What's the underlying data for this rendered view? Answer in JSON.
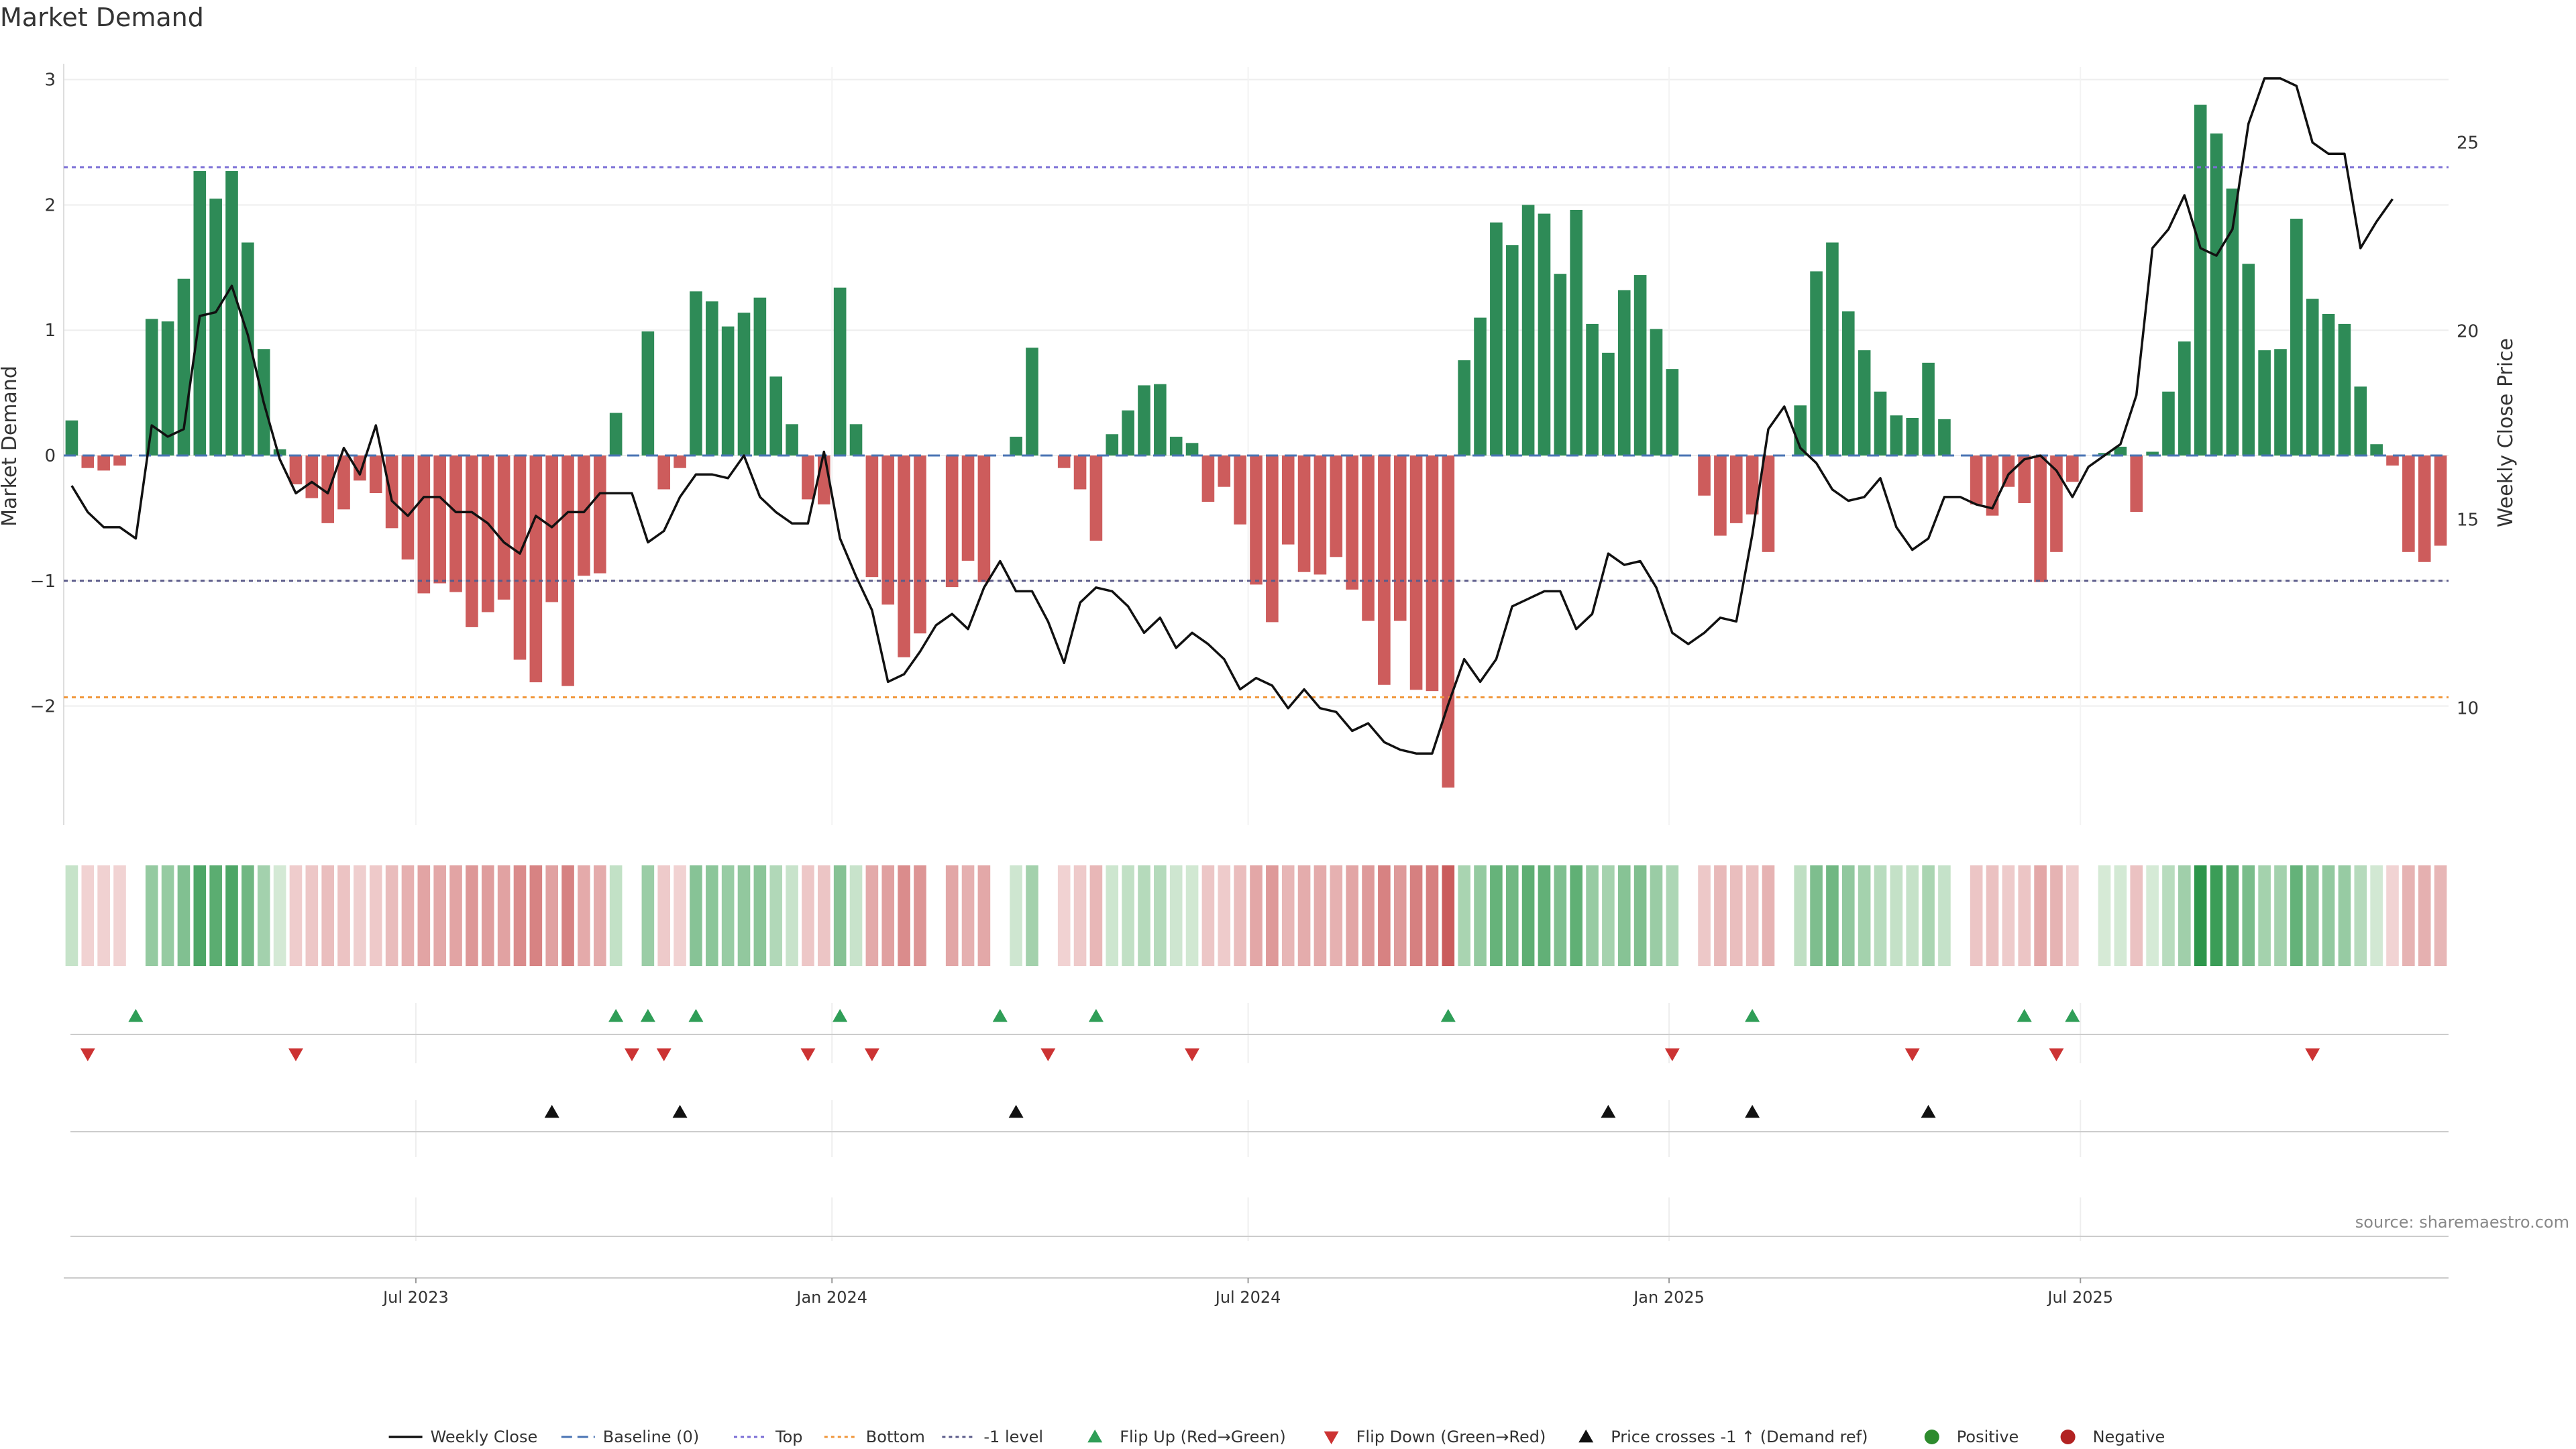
{
  "chart_data": {
    "type": "bar",
    "title": "Market Demand",
    "ylabel": "Market Demand",
    "y2label": "Weekly Close Price",
    "ylim": [
      -2.95,
      3.1
    ],
    "y2lim": [
      6.9,
      27.0
    ],
    "yticks": [
      3,
      2,
      1,
      0,
      -1,
      -2
    ],
    "yticklabels": [
      "3",
      "2",
      "1",
      "0",
      "−1",
      "−2"
    ],
    "y2ticks": [
      25,
      20,
      15,
      10
    ],
    "y2ticklabels": [
      "25",
      "20",
      "15",
      "10"
    ],
    "xticks": [
      {
        "label": "Jul 2023",
        "week": 22
      },
      {
        "label": "Jan 2024",
        "week": 48
      },
      {
        "label": "Jul 2024",
        "week": 74
      },
      {
        "label": "Jan 2025",
        "week": 100.3
      },
      {
        "label": "Jul 2025",
        "week": 126
      }
    ],
    "reference_lines": {
      "top": 2.3,
      "bottom": -1.93,
      "minus_one": -1.0,
      "baseline": 0
    },
    "demand": [
      0.28,
      -0.1,
      -0.12,
      -0.08,
      0.0,
      1.09,
      1.07,
      1.41,
      2.27,
      2.05,
      2.27,
      1.7,
      0.85,
      0.05,
      -0.23,
      -0.34,
      -0.54,
      -0.43,
      -0.2,
      -0.3,
      -0.58,
      -0.83,
      -1.1,
      -1.02,
      -1.09,
      -1.37,
      -1.25,
      -1.15,
      -1.63,
      -1.81,
      -1.17,
      -1.84,
      -0.96,
      -0.94,
      0.34,
      0.0,
      0.99,
      -0.27,
      -0.1,
      1.31,
      1.23,
      1.03,
      1.14,
      1.26,
      0.63,
      0.25,
      -0.35,
      -0.39,
      1.34,
      0.25,
      -0.97,
      -1.19,
      -1.61,
      -1.42,
      0.0,
      -1.05,
      -0.84,
      -1.01,
      0.0,
      0.15,
      0.86,
      0.0,
      -0.1,
      -0.27,
      -0.68,
      0.17,
      0.36,
      0.56,
      0.57,
      0.15,
      0.1,
      -0.37,
      -0.25,
      -0.55,
      -1.03,
      -1.33,
      -0.71,
      -0.93,
      -0.95,
      -0.81,
      -1.07,
      -1.32,
      -1.83,
      -1.32,
      -1.87,
      -1.88,
      -2.65,
      0.76,
      1.1,
      1.86,
      1.68,
      2.0,
      1.93,
      1.45,
      1.96,
      1.05,
      0.82,
      1.32,
      1.44,
      1.01,
      0.69,
      0.0,
      -0.32,
      -0.64,
      -0.54,
      -0.47,
      -0.77,
      0.0,
      0.4,
      1.47,
      1.7,
      1.15,
      0.84,
      0.51,
      0.32,
      0.3,
      0.74,
      0.29,
      0.0,
      -0.39,
      -0.48,
      -0.25,
      -0.38,
      -1.01,
      -0.77,
      -0.21,
      0.0,
      0.02,
      0.07,
      -0.45,
      0.03,
      0.51,
      0.91,
      2.8,
      2.57,
      2.13,
      1.53,
      0.84,
      0.85,
      1.89,
      1.25,
      1.13,
      1.05,
      0.55,
      0.09,
      -0.08,
      -0.77,
      -0.85,
      -0.72
    ],
    "close": [
      15.9,
      15.2,
      14.8,
      14.8,
      14.5,
      17.5,
      17.2,
      17.4,
      20.4,
      20.5,
      21.2,
      19.9,
      18.1,
      16.6,
      15.7,
      16.0,
      15.7,
      16.9,
      16.2,
      17.5,
      15.5,
      15.1,
      15.6,
      15.6,
      15.2,
      15.2,
      14.9,
      14.4,
      14.1,
      15.1,
      14.8,
      15.2,
      15.2,
      15.7,
      15.7,
      15.7,
      14.4,
      14.7,
      15.6,
      16.2,
      16.2,
      16.1,
      16.7,
      15.6,
      15.2,
      14.9,
      14.9,
      16.8,
      14.5,
      13.5,
      12.6,
      10.7,
      10.9,
      11.5,
      12.2,
      12.5,
      12.1,
      13.2,
      13.9,
      13.1,
      13.1,
      12.3,
      11.2,
      12.8,
      13.2,
      13.1,
      12.7,
      12.0,
      12.4,
      11.6,
      12.0,
      11.7,
      11.3,
      10.5,
      10.8,
      10.6,
      10.0,
      10.5,
      10.0,
      9.9,
      9.4,
      9.6,
      9.1,
      8.9,
      8.8,
      8.8,
      10.1,
      11.3,
      10.7,
      11.3,
      12.7,
      12.9,
      13.1,
      13.1,
      12.1,
      12.5,
      14.1,
      13.8,
      13.9,
      13.2,
      12.0,
      11.7,
      12.0,
      12.4,
      12.3,
      14.6,
      17.4,
      18.0,
      16.9,
      16.5,
      15.8,
      15.5,
      15.6,
      16.1,
      14.8,
      14.2,
      14.5,
      15.6,
      15.6,
      15.4,
      15.3,
      16.2,
      16.6,
      16.7,
      16.3,
      15.6,
      16.4,
      16.7,
      17.0,
      18.3,
      22.2,
      22.7,
      23.6,
      22.2,
      22.0,
      22.7,
      25.5,
      26.7,
      26.7,
      26.5,
      25.0,
      24.7,
      24.7,
      22.2,
      22.9,
      23.5
    ],
    "flip_up": [
      4,
      34,
      36,
      39,
      48,
      58,
      64,
      86,
      105,
      122,
      125
    ],
    "flip_down": [
      1,
      14,
      35,
      37,
      46,
      50,
      61,
      70,
      100,
      115,
      124,
      140
    ],
    "price_crosses": [
      30,
      38,
      59,
      96,
      105,
      116
    ],
    "legend": [
      {
        "label": "Weekly Close",
        "kind": "line",
        "color": "#111111"
      },
      {
        "label": "Baseline (0)",
        "kind": "dash",
        "color": "#4a74b4"
      },
      {
        "label": "Top",
        "kind": "dot",
        "color": "#7b6fd6"
      },
      {
        "label": "Bottom",
        "kind": "dot",
        "color": "#f0963a"
      },
      {
        "label": "-1 level",
        "kind": "dot",
        "color": "#5b5b8a"
      },
      {
        "label": "Flip Up (Red→Green)",
        "kind": "tri-up",
        "color": "#2f9e57"
      },
      {
        "label": "Flip Down (Green→Red)",
        "kind": "tri-down",
        "color": "#cc3333"
      },
      {
        "label": "Price crosses -1 ↑ (Demand ref)",
        "kind": "tri-up",
        "color": "#111111"
      },
      {
        "label": "Positive",
        "kind": "dot-circle",
        "color": "#2e8b2e"
      },
      {
        "label": "Negative",
        "kind": "dot-circle",
        "color": "#b22222"
      }
    ]
  },
  "colors": {
    "positive": "#2e8b57",
    "negative": "#cd5c5c",
    "line": "#111111"
  },
  "source": "source: sharemaestro.com"
}
